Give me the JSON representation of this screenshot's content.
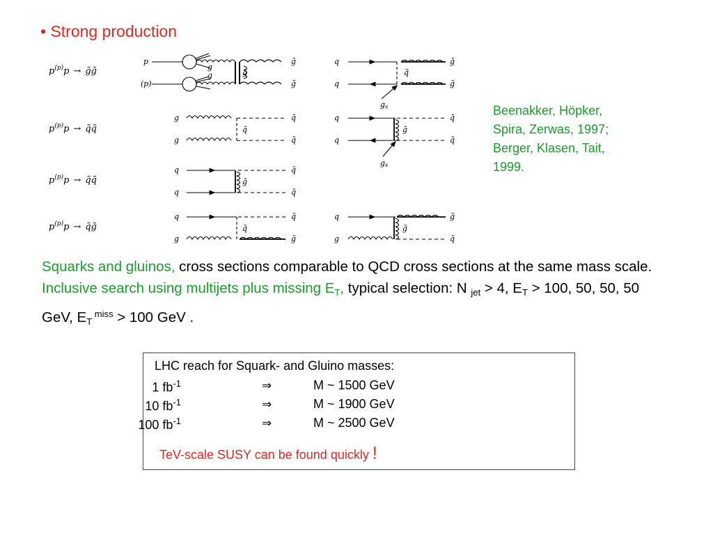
{
  "bullet": "• Strong production",
  "references": [
    "Beenakker, Höpker,",
    "Spira, Zerwas, 1997;",
    "Berger, Klasen, Tait,",
    "1999."
  ],
  "processes": [
    {
      "lhs": "p",
      "bar": "(p)",
      "arrow": "→",
      "final": "g̃g̃"
    },
    {
      "lhs": "p",
      "bar": "(p)",
      "arrow": "→",
      "final": "q̃q̃"
    },
    {
      "lhs": "p",
      "bar": "(p)",
      "arrow": "→",
      "final": "q̃q̃"
    },
    {
      "lhs": "p",
      "bar": "(p)",
      "arrow": "→",
      "final": "q̃g̃"
    }
  ],
  "diagram_labels": {
    "p": "p",
    "pbar": "(p)",
    "g": "g",
    "q": "q",
    "gs": "g",
    "gs_sub": "s",
    "sq": "q̃",
    "sg": "g̃",
    "gt": "g̃",
    "qt": "q̃",
    "qbt": "q̃"
  },
  "paragraph": {
    "p1_green": "Squarks and gluinos,",
    "p1_black": " cross sections comparable to QCD cross sections at the same mass scale.",
    "p2_green": " Inclusive search using multijets plus missing E",
    "p2_green_sub": "T",
    "p2_green_end": ",",
    "p3_a": " typical selection:  N ",
    "p3_sub_jet": "jet",
    "p3_b": " > 4, E",
    "p3_sub_T": "T",
    "p3_c": " > 100, 50, 50, 50 GeV, E",
    "p3_sub_T2": "T",
    "p3_sup_miss": " miss",
    "p3_d": " > 100 GeV ."
  },
  "lhc_box": {
    "title": "LHC reach for Squark- and Gluino masses:",
    "rows": [
      {
        "lum": "1 fb",
        "exp": "-1",
        "arrow": "⇒",
        "mass": "M ~  1500 GeV"
      },
      {
        "lum": "10 fb",
        "exp": "-1",
        "arrow": "⇒",
        "mass": "M ~  1900 GeV"
      },
      {
        "lum": "100 fb",
        "exp": "-1",
        "arrow": "⇒",
        "mass": "M ~  2500 GeV"
      }
    ],
    "conclusion": "TeV-scale SUSY can be found quickly ",
    "conclusion_mark": "!"
  }
}
